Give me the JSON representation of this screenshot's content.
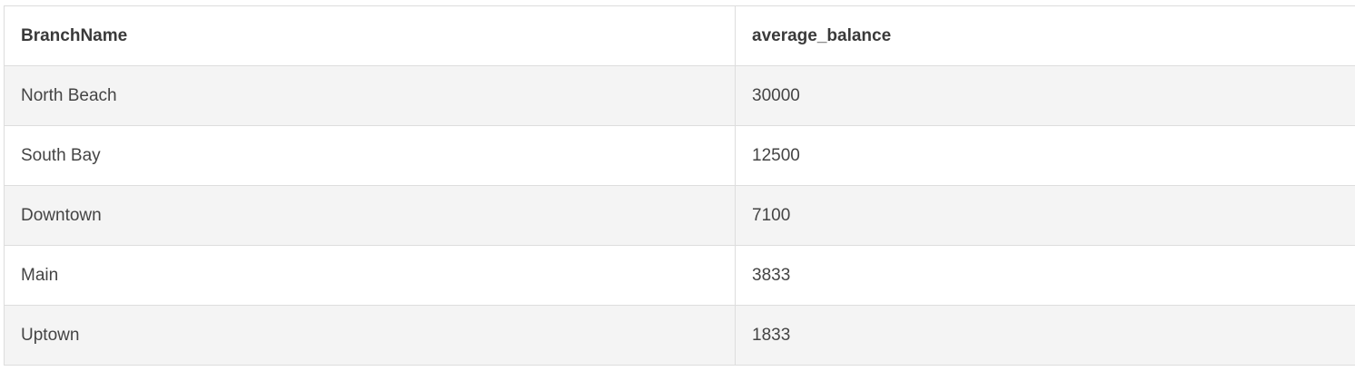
{
  "table": {
    "columns": [
      "BranchName",
      "average_balance"
    ],
    "rows": [
      [
        "North Beach",
        "30000"
      ],
      [
        "South Bay",
        "12500"
      ],
      [
        "Downtown",
        "7100"
      ],
      [
        "Main",
        "3833"
      ],
      [
        "Uptown",
        "1833"
      ]
    ]
  }
}
